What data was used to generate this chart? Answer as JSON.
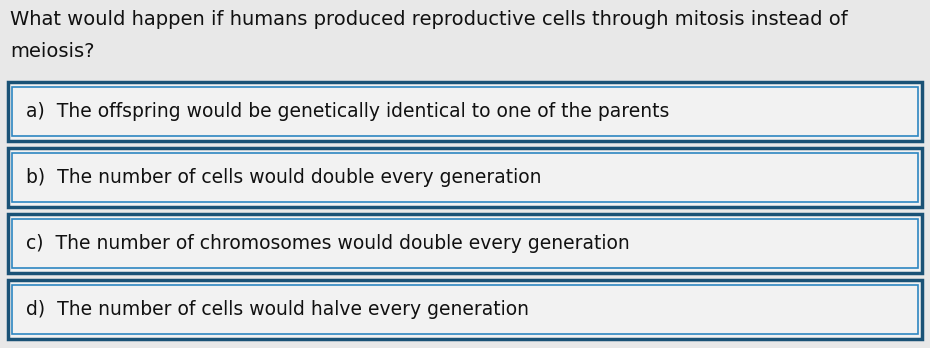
{
  "question_line1": "What would happen if humans produced reproductive cells through mitosis instead of",
  "question_line2": "meiosis?",
  "options": [
    "a)  The offspring would be genetically identical to one of the parents",
    "b)  The number of cells would double every generation",
    "c)  The number of chromosomes would double every generation",
    "d)  The number of cells would halve every generation"
  ],
  "bg_color": "#e8e8e8",
  "box_bg_color": "#f2f2f2",
  "box_border_outer": "#1a5276",
  "box_border_inner": "#2e86c1",
  "question_fontsize": 14,
  "option_fontsize": 13.5,
  "text_color": "#111111",
  "fig_width": 9.3,
  "fig_height": 3.48,
  "dpi": 100
}
